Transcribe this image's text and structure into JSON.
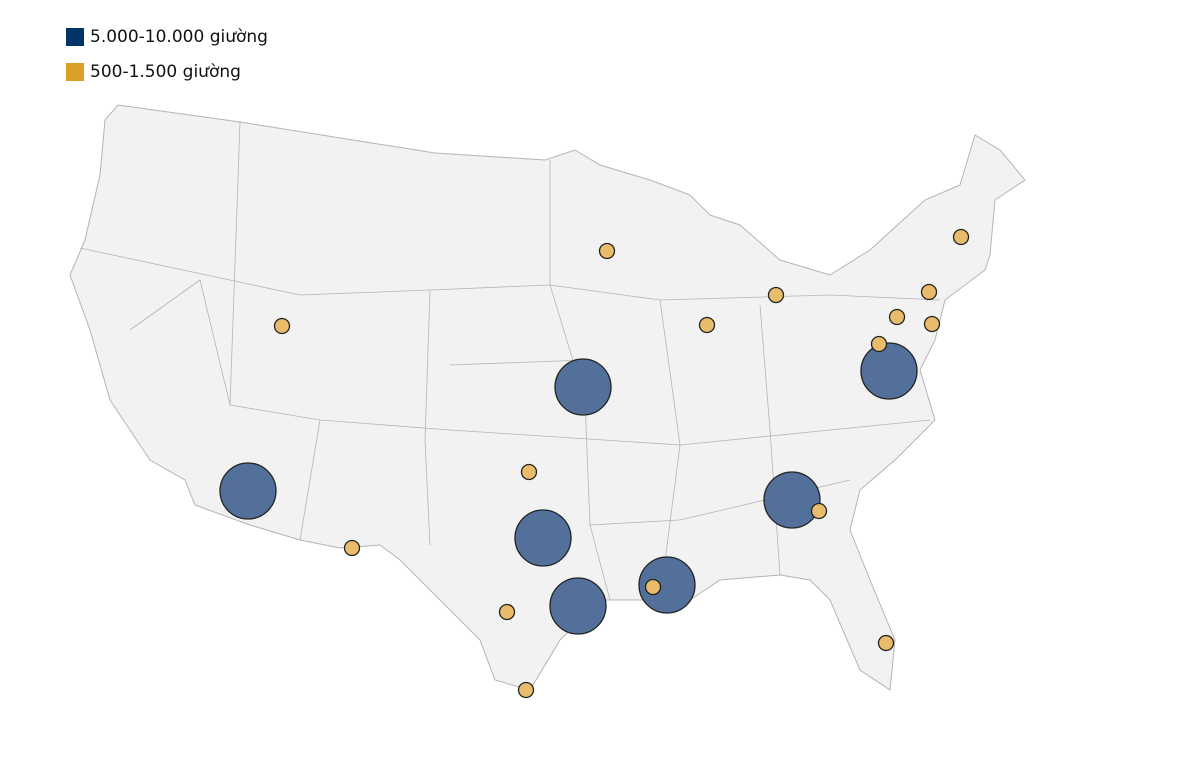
{
  "legend": {
    "items": [
      {
        "label": "5.000-10.000 giường",
        "color": "#003366"
      },
      {
        "label": "500-1.500 giường",
        "color": "#DAA026"
      }
    ]
  },
  "map": {
    "land_color": "#f2f2f2",
    "border_color": "#b4b4b4",
    "large_bubble_fill": "#52709a",
    "small_bubble_fill": "#e8bc6a"
  }
}
